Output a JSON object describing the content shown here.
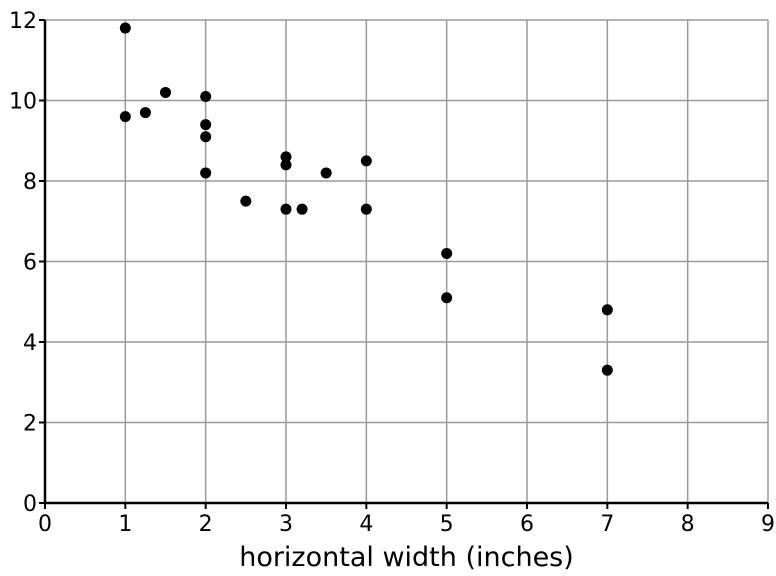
{
  "chart_data": {
    "type": "scatter",
    "title": "",
    "xlabel": "horizontal width (inches)",
    "ylabel": "",
    "xlim": [
      0,
      9
    ],
    "ylim": [
      0,
      12
    ],
    "x_ticks": [
      0,
      1,
      2,
      3,
      4,
      5,
      6,
      7,
      8,
      9
    ],
    "y_ticks": [
      0,
      2,
      4,
      6,
      8,
      10,
      12
    ],
    "grid": true,
    "legend": "none",
    "colors": {
      "point": "#000000",
      "grid": "#9a9a9a",
      "axis": "#000000",
      "background": "#ffffff"
    },
    "series": [
      {
        "points": [
          {
            "x": 1,
            "y": 11.8
          },
          {
            "x": 1,
            "y": 9.6
          },
          {
            "x": 1.25,
            "y": 9.7
          },
          {
            "x": 1.5,
            "y": 10.2
          },
          {
            "x": 2,
            "y": 10.1
          },
          {
            "x": 2,
            "y": 9.4
          },
          {
            "x": 2,
            "y": 9.1
          },
          {
            "x": 2,
            "y": 8.2
          },
          {
            "x": 2.5,
            "y": 7.5
          },
          {
            "x": 3,
            "y": 8.6
          },
          {
            "x": 3,
            "y": 8.4
          },
          {
            "x": 3,
            "y": 7.3
          },
          {
            "x": 3.2,
            "y": 7.3
          },
          {
            "x": 3.5,
            "y": 8.2
          },
          {
            "x": 4,
            "y": 8.5
          },
          {
            "x": 4,
            "y": 7.3
          },
          {
            "x": 5,
            "y": 6.2
          },
          {
            "x": 5,
            "y": 5.1
          },
          {
            "x": 7,
            "y": 4.8
          },
          {
            "x": 7,
            "y": 3.3
          }
        ]
      }
    ]
  }
}
